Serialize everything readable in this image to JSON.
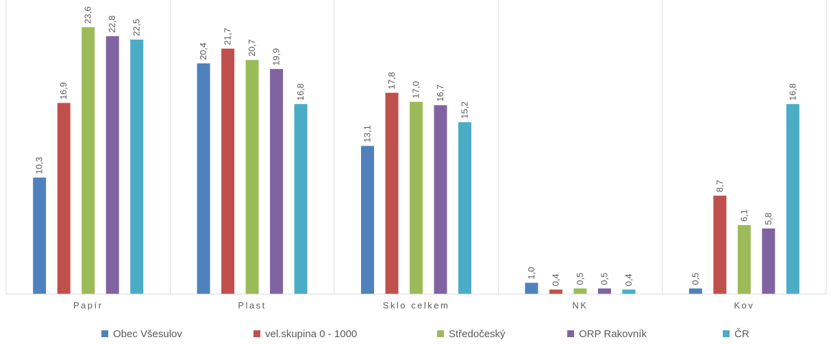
{
  "chart_data": {
    "type": "bar",
    "categories": [
      "Papír",
      "Plast",
      "Sklo celkem",
      "NK",
      "Kov"
    ],
    "series": [
      {
        "name": "Obec Všesulov",
        "color": "#4F81BD",
        "values": [
          10.3,
          20.4,
          13.1,
          1.0,
          0.5
        ],
        "labels": [
          "10,3",
          "20,4",
          "13,1",
          "1,0",
          "0,5"
        ]
      },
      {
        "name": "vel.skupina 0 - 1000",
        "color": "#C0504D",
        "values": [
          16.9,
          21.7,
          17.8,
          0.4,
          8.7
        ],
        "labels": [
          "16,9",
          "21,7",
          "17,8",
          "0,4",
          "8,7"
        ]
      },
      {
        "name": "Středočeský",
        "color": "#9BBB59",
        "values": [
          23.6,
          20.7,
          17.0,
          0.5,
          6.1
        ],
        "labels": [
          "23,6",
          "20,7",
          "17,0",
          "0,5",
          "6,1"
        ]
      },
      {
        "name": "ORP Rakovník",
        "color": "#8064A2",
        "values": [
          22.8,
          19.9,
          16.7,
          0.5,
          5.8
        ],
        "labels": [
          "22,8",
          "19,9",
          "16,7",
          "0,5",
          "5,8"
        ]
      },
      {
        "name": "ČR",
        "color": "#4BACC6",
        "values": [
          22.5,
          16.8,
          15.2,
          0.4,
          16.8
        ],
        "labels": [
          "22,5",
          "16,8",
          "15,2",
          "0,4",
          "16,8"
        ]
      }
    ],
    "ylim": [
      0,
      26
    ],
    "grid": false,
    "category_separators": true,
    "legend_position": "bottom",
    "data_labels": true
  }
}
